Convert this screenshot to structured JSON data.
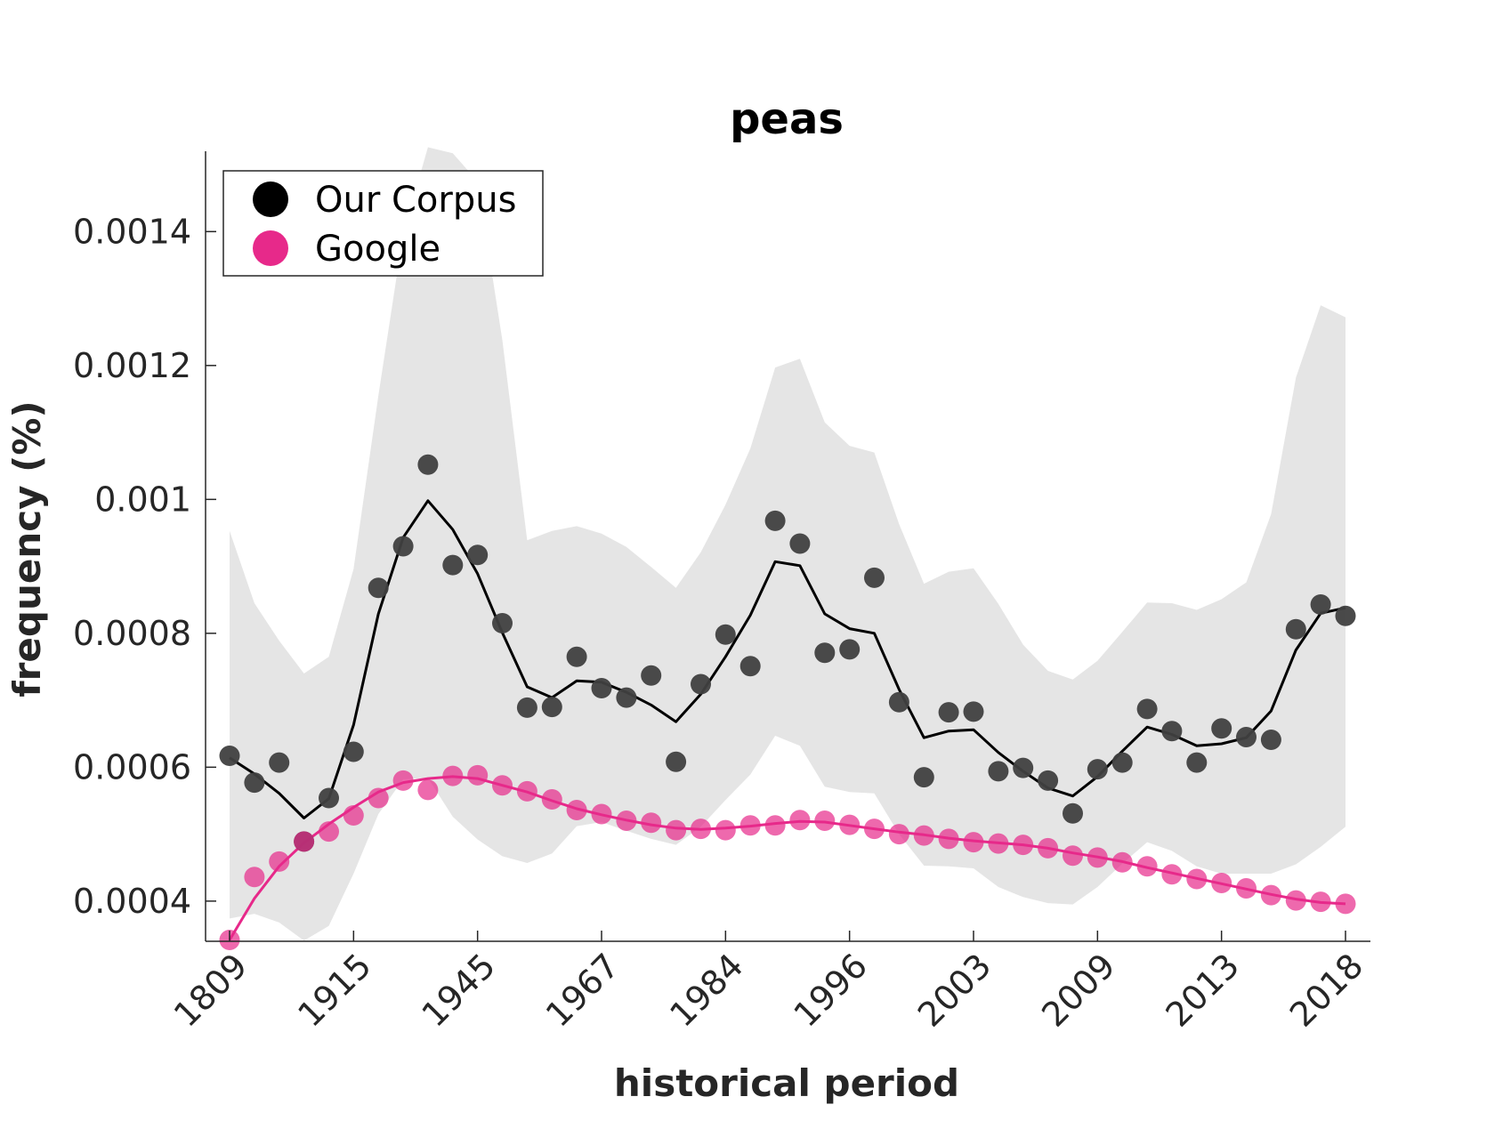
{
  "chart_data": {
    "type": "scatter",
    "title": "peas",
    "xlabel": "historical period",
    "ylabel": "frequency (%)",
    "x_tick_labels": [
      "1809",
      "1915",
      "1945",
      "1967",
      "1984",
      "1996",
      "2003",
      "2009",
      "2013",
      "2018"
    ],
    "y_ticks": [
      0.0004,
      0.0006,
      0.0008,
      0.001,
      0.0012,
      0.0014
    ],
    "y_tick_labels": [
      "0.0004",
      "0.0006",
      "0.0008",
      "0.001",
      "0.0012",
      "0.0014"
    ],
    "ylim": [
      0.00034,
      0.00152
    ],
    "legend": {
      "placement": "top-left",
      "entries": [
        "Our Corpus",
        "Google"
      ]
    },
    "grid": false,
    "series": [
      {
        "name": "Our Corpus",
        "color": "#404040",
        "points": [
          0.000617,
          0.000577,
          0.000607,
          0.000489,
          0.000554,
          0.000623,
          0.000868,
          0.00093,
          0.001052,
          0.000902,
          0.000917,
          0.000815,
          0.000689,
          0.00069,
          0.000765,
          0.000718,
          0.000704,
          0.000737,
          0.000608,
          0.000724,
          0.000798,
          0.000751,
          0.000968,
          0.000934,
          0.000771,
          0.000776,
          0.000883,
          0.000697,
          0.000585,
          0.000682,
          0.000683,
          0.000594,
          0.000599,
          0.00058,
          0.000531,
          0.000597,
          0.000607,
          0.000687,
          0.000654,
          0.000607,
          0.000658,
          0.000645,
          0.000641,
          0.000806,
          0.000843,
          0.000826
        ],
        "smoothed": [
          0.000614,
          0.00059,
          0.000561,
          0.000524,
          0.000553,
          0.000663,
          0.000829,
          0.000943,
          0.000998,
          0.000955,
          0.000889,
          0.000801,
          0.00072,
          0.000704,
          0.000729,
          0.000727,
          0.000712,
          0.000693,
          0.000668,
          0.000709,
          0.000765,
          0.000827,
          0.000907,
          0.000901,
          0.000829,
          0.000807,
          0.0008,
          0.000716,
          0.000644,
          0.000654,
          0.000656,
          0.000622,
          0.000594,
          0.000569,
          0.000557,
          0.000586,
          0.000624,
          0.00066,
          0.000649,
          0.000632,
          0.000635,
          0.000644,
          0.000684,
          0.000775,
          0.00083,
          0.000838
        ],
        "band_upper": [
          0.000953,
          0.000845,
          0.000789,
          0.00074,
          0.000765,
          0.000896,
          0.001155,
          0.001397,
          0.001526,
          0.001517,
          0.001475,
          0.001238,
          0.000939,
          0.000953,
          0.00096,
          0.000949,
          0.000929,
          0.000899,
          0.000868,
          0.000921,
          0.000992,
          0.001076,
          0.001197,
          0.00121,
          0.001115,
          0.00108,
          0.00107,
          0.000963,
          0.000874,
          0.000892,
          0.000897,
          0.000844,
          0.000783,
          0.000744,
          0.000731,
          0.000759,
          0.000802,
          0.000846,
          0.000845,
          0.000835,
          0.000851,
          0.000876,
          0.000978,
          0.001182,
          0.00129,
          0.001272
        ],
        "band_lower": [
          0.000374,
          0.000381,
          0.000368,
          0.000341,
          0.000363,
          0.000441,
          0.00053,
          0.000582,
          0.000584,
          0.000526,
          0.000492,
          0.000467,
          0.000457,
          0.000471,
          0.000512,
          0.000518,
          0.000505,
          0.000493,
          0.000484,
          0.000511,
          0.000551,
          0.000589,
          0.000647,
          0.000632,
          0.000571,
          0.000563,
          0.000561,
          0.0005,
          0.000453,
          0.000452,
          0.000449,
          0.000421,
          0.000406,
          0.000397,
          0.000395,
          0.000421,
          0.000456,
          0.000488,
          0.000475,
          0.000452,
          0.000441,
          0.000441,
          0.000441,
          0.000455,
          0.000481,
          0.000511
        ]
      },
      {
        "name": "Google",
        "color": "#e7298a",
        "points": [
          0.000342,
          0.000436,
          0.000459,
          0.000489,
          0.000504,
          0.000528,
          0.000554,
          0.00058,
          0.000566,
          0.000587,
          0.000588,
          0.000573,
          0.000564,
          0.000552,
          0.000536,
          0.00053,
          0.00052,
          0.000517,
          0.000506,
          0.000508,
          0.000506,
          0.000513,
          0.000513,
          0.000521,
          0.00052,
          0.000514,
          0.000508,
          0.0005,
          0.000498,
          0.000493,
          0.000488,
          0.000486,
          0.000484,
          0.000479,
          0.000468,
          0.000465,
          0.000458,
          0.000452,
          0.00044,
          0.000433,
          0.000427,
          0.000419,
          0.000409,
          0.000401,
          0.000399,
          0.000396
        ],
        "smoothed": [
          0.000342,
          0.000404,
          0.000452,
          0.000487,
          0.000515,
          0.00054,
          0.000563,
          0.000577,
          0.000583,
          0.000586,
          0.000583,
          0.000573,
          0.000563,
          0.00055,
          0.000538,
          0.000529,
          0.000521,
          0.000514,
          0.000509,
          0.000507,
          0.000509,
          0.000512,
          0.000516,
          0.000519,
          0.000518,
          0.000513,
          0.000508,
          0.000503,
          0.000499,
          0.000494,
          0.00049,
          0.000487,
          0.000484,
          0.000479,
          0.000472,
          0.000466,
          0.000459,
          0.00045,
          0.000442,
          0.000434,
          0.000426,
          0.000418,
          0.00041,
          0.000403,
          0.000398,
          0.000396
        ]
      }
    ]
  }
}
